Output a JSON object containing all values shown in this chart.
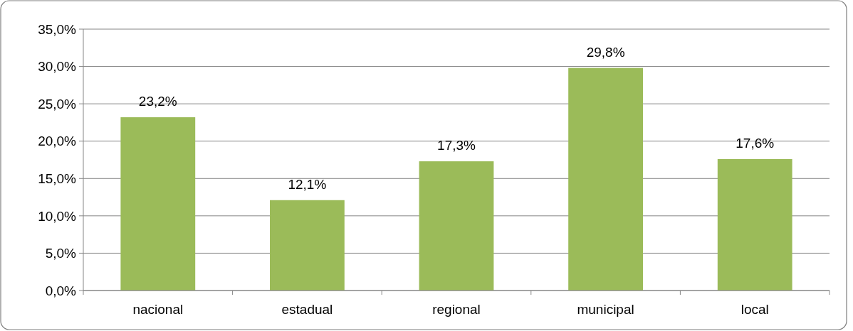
{
  "chart_data": {
    "type": "bar",
    "categories": [
      "nacional",
      "estadual",
      "regional",
      "municipal",
      "local"
    ],
    "values": [
      23.2,
      12.1,
      17.3,
      29.8,
      17.6
    ],
    "value_labels": [
      "23,2%",
      "12,1%",
      "17,3%",
      "29,8%",
      "17,6%"
    ],
    "color": "#9bbb59",
    "ylim": [
      0,
      35
    ],
    "yticks": [
      {
        "value": 0,
        "label": "0,0%"
      },
      {
        "value": 5,
        "label": "5,0%"
      },
      {
        "value": 10,
        "label": "10,0%"
      },
      {
        "value": 15,
        "label": "15,0%"
      },
      {
        "value": 20,
        "label": "20,0%"
      },
      {
        "value": 25,
        "label": "25,0%"
      },
      {
        "value": 30,
        "label": "30,0%"
      },
      {
        "value": 35,
        "label": "35,0%"
      }
    ],
    "grid": "y"
  }
}
